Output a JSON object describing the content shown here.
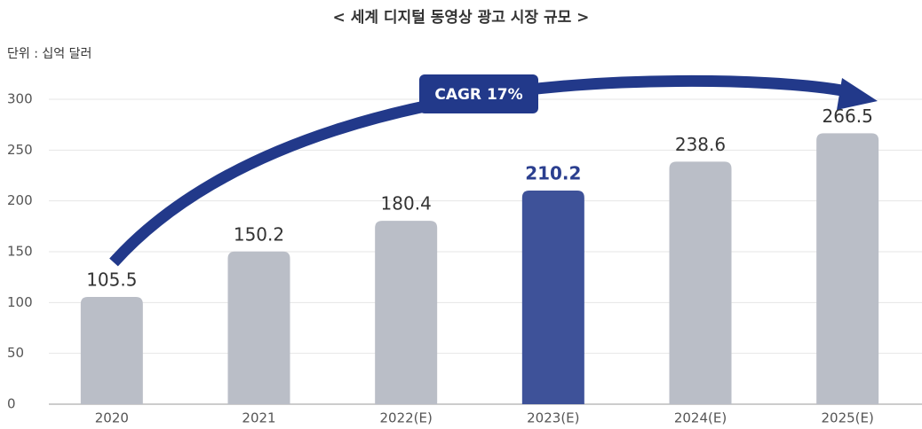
{
  "chart_data": {
    "type": "bar",
    "title": "< 세계 디지털 동영상 광고 시장 규모 >",
    "subtitle": "단위 : 십억 달러",
    "annotation": "CAGR 17%",
    "categories": [
      "2020",
      "2021",
      "2022(E)",
      "2023(E)",
      "2024(E)",
      "2025(E)"
    ],
    "values": [
      105.5,
      150.2,
      180.4,
      210.2,
      238.6,
      266.5
    ],
    "colors": [
      "#babec7",
      "#babec7",
      "#babec7",
      "#3e5299",
      "#babec7",
      "#babec7"
    ],
    "label_colors": [
      "#333333",
      "#333333",
      "#333333",
      "#2b3f8f",
      "#333333",
      "#333333"
    ],
    "ylim": [
      0,
      300
    ],
    "yticks": [
      0,
      50,
      100,
      150,
      200,
      250,
      300
    ],
    "grid": true
  }
}
